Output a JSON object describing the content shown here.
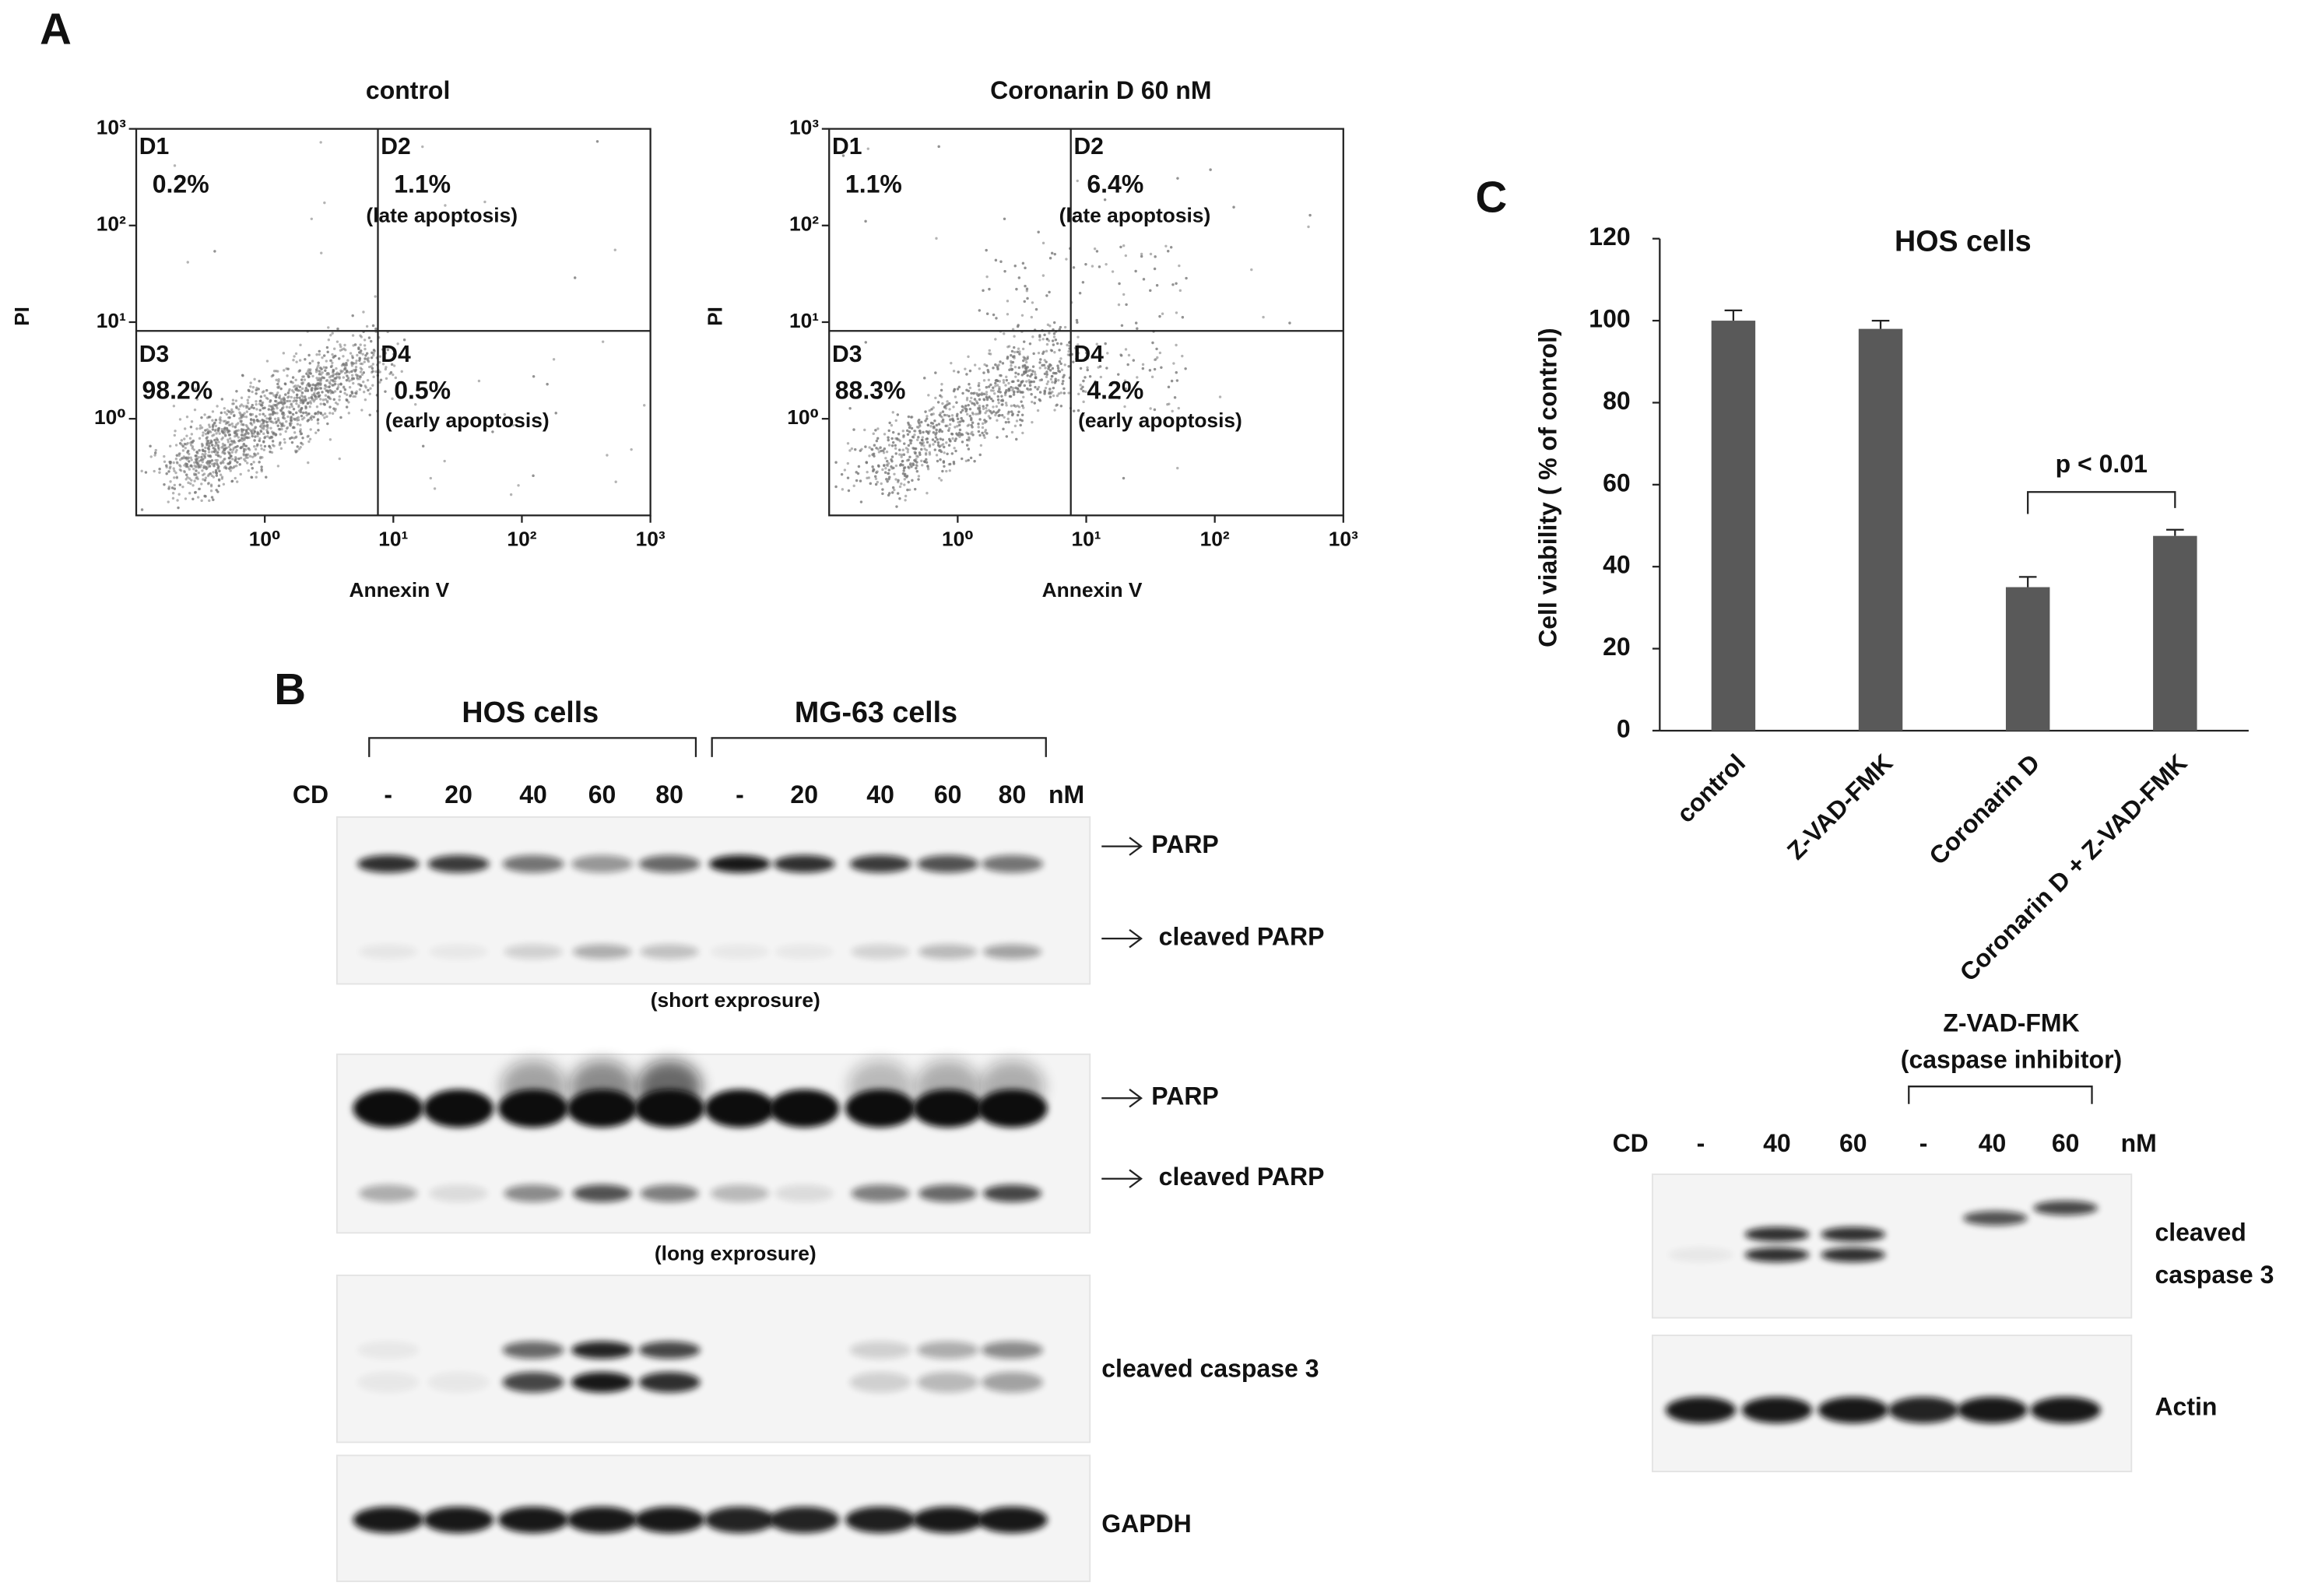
{
  "panel_labels": [
    "A",
    "B",
    "C"
  ],
  "flow_cytometry": [
    {
      "title": "control",
      "xlabel": "Annexin V",
      "ylabel": "PI",
      "log_scale": true,
      "xlim": [
        0.1,
        1000
      ],
      "ylim": [
        0.1,
        1000
      ],
      "xticks": [
        {
          "value": 1,
          "label": "10⁰"
        },
        {
          "value": 10,
          "label": "10¹"
        },
        {
          "value": 100,
          "label": "10²"
        },
        {
          "value": 1000,
          "label": "10³"
        }
      ],
      "yticks": [
        {
          "value": 1,
          "label": "10⁰"
        },
        {
          "value": 10,
          "label": "10¹"
        },
        {
          "value": 100,
          "label": "10²"
        },
        {
          "value": 1000,
          "label": "10³"
        }
      ],
      "quadrants": [
        {
          "name": "D1",
          "percent": "0.2%"
        },
        {
          "name": "D2",
          "percent": "1.1%",
          "note": "(late apoptosis)"
        },
        {
          "name": "D3",
          "percent": "98.2%"
        },
        {
          "name": "D4",
          "percent": "0.5%",
          "note": "(early apoptosis)"
        }
      ]
    },
    {
      "title": "Coronarin D 60 nM",
      "xlabel": "Annexin V",
      "ylabel": "PI",
      "log_scale": true,
      "xlim": [
        0.1,
        1000
      ],
      "ylim": [
        0.1,
        1000
      ],
      "xticks": [
        {
          "value": 1,
          "label": "10⁰"
        },
        {
          "value": 10,
          "label": "10¹"
        },
        {
          "value": 100,
          "label": "10²"
        },
        {
          "value": 1000,
          "label": "10³"
        }
      ],
      "yticks": [
        {
          "value": 1,
          "label": "10⁰"
        },
        {
          "value": 10,
          "label": "10¹"
        },
        {
          "value": 100,
          "label": "10²"
        },
        {
          "value": 1000,
          "label": "10³"
        }
      ],
      "quadrants": [
        {
          "name": "D1",
          "percent": "1.1%"
        },
        {
          "name": "D2",
          "percent": "6.4%",
          "note": "(late apoptosis)"
        },
        {
          "name": "D3",
          "percent": "88.3%"
        },
        {
          "name": "D4",
          "percent": "4.2%",
          "note": "(early apoptosis)"
        }
      ]
    }
  ],
  "blot_b": {
    "groups": [
      "HOS cells",
      "MG-63 cells"
    ],
    "lane_header": "CD",
    "lanes": [
      "-",
      "20",
      "40",
      "60",
      "80",
      "-",
      "20",
      "40",
      "60",
      "80"
    ],
    "unit": "nM",
    "rows": [
      {
        "labels": [
          "PARP",
          "cleaved PARP"
        ],
        "note": "(short exprosure)"
      },
      {
        "labels": [
          "PARP",
          "cleaved PARP"
        ],
        "note": "(long exprosure)"
      },
      {
        "labels": [
          "cleaved caspase 3"
        ]
      },
      {
        "labels": [
          "GAPDH"
        ]
      }
    ]
  },
  "blot_c": {
    "inhibitor": "Z-VAD-FMK",
    "inhibitor_note": "(caspase inhibitor)",
    "lane_header": "CD",
    "lanes": [
      "-",
      "40",
      "60",
      "-",
      "40",
      "60"
    ],
    "unit": "nM",
    "rows": [
      {
        "labels": [
          "cleaved",
          "caspase 3"
        ]
      },
      {
        "labels": [
          "Actin"
        ]
      }
    ]
  },
  "chart_data": {
    "type": "bar",
    "title": "HOS cells",
    "ylabel": "Cell viability ( % of control)",
    "categories": [
      "control",
      "Z-VAD-FMK",
      "Coronarin D",
      "Coronarin D + Z-VAD-FMK"
    ],
    "values": [
      100,
      98,
      35,
      47.5
    ],
    "errors": [
      2.5,
      2,
      2.5,
      1.5
    ],
    "color": "#595959",
    "ylim": [
      0,
      120
    ],
    "yticks": [
      0,
      20,
      40,
      60,
      80,
      100,
      120
    ],
    "annotation": "p < 0.01"
  }
}
